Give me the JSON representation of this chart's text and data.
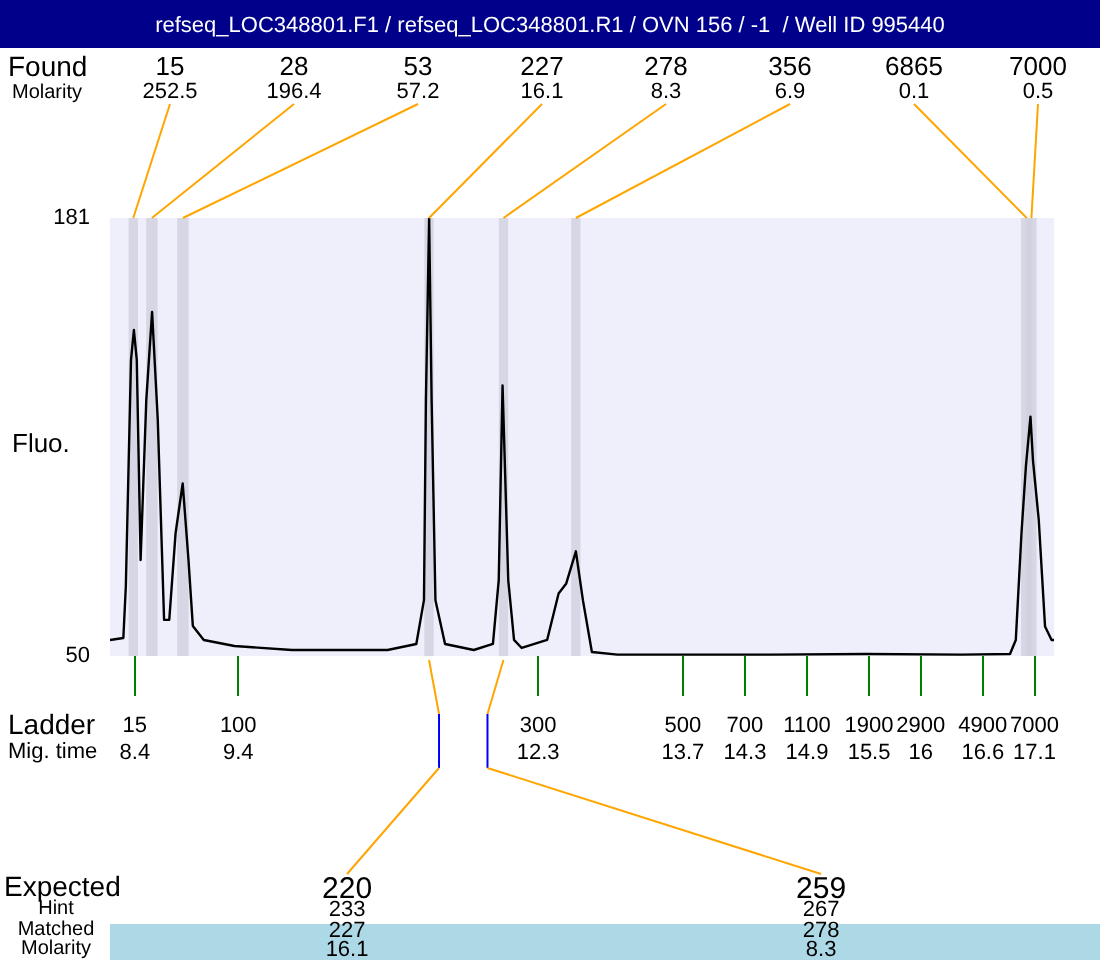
{
  "chart_data": {
    "type": "line",
    "title": "refseq_LOC348801.F1 / refseq_LOC348801.R1 / OVN 156 / -1  / Well ID 995440",
    "ylabel": "Fluo.",
    "xlabel": "Mig. time",
    "x": [
      8.16,
      8.289,
      8.313,
      8.363,
      8.391,
      8.419,
      8.456,
      8.511,
      8.567,
      8.622,
      8.683,
      8.733,
      8.794,
      8.863,
      8.919,
      8.961,
      9.067,
      9.363,
      9.919,
      10.844,
      11.122,
      11.196,
      11.215,
      11.246,
      11.27,
      11.307,
      11.4,
      11.678,
      11.863,
      11.919,
      11.956,
      12.011,
      12.067,
      12.141,
      12.387,
      12.498,
      12.572,
      12.665,
      12.733,
      12.82,
      13.067,
      14.548,
      15.474,
      16.4,
      16.863,
      16.919,
      16.974,
      17.017,
      17.061,
      17.085,
      17.141,
      17.202,
      17.265,
      17.289
    ],
    "series": [
      {
        "color": "#000000",
        "values": [
          54.8,
          55.4,
          70.7,
          138.5,
          147.5,
          138.5,
          78.7,
          126.6,
          152.9,
          120.6,
          60.8,
          60.8,
          86.7,
          101.6,
          78.7,
          59,
          54.8,
          53,
          51.8,
          51.8,
          53.6,
          66.7,
          126.6,
          181,
          126.6,
          66.7,
          53.6,
          51.8,
          53.6,
          72.7,
          130.9,
          72.7,
          54.8,
          52.4,
          54.8,
          68.7,
          71.7,
          81.3,
          66.7,
          51.2,
          50.4,
          50.4,
          50.6,
          50.4,
          50.6,
          54.8,
          86.7,
          106.8,
          121.6,
          108.6,
          90.7,
          58.8,
          54.8,
          54.8
        ]
      }
    ],
    "xlim": [
      8.16,
      17.29
    ],
    "ylim": [
      50,
      181
    ],
    "yticks": [
      50,
      181
    ],
    "xticks": [
      8.4,
      9.4,
      12.3,
      13.7,
      14.3,
      14.9,
      15.5,
      16,
      16.6,
      17.1
    ],
    "bands": [
      {
        "axis": "x",
        "from": 8.34,
        "to": 8.43,
        "label": "15",
        "color": "#d0d0de"
      },
      {
        "axis": "x",
        "from": 8.51,
        "to": 8.62,
        "label": "28",
        "color": "#d0d0de"
      },
      {
        "axis": "x",
        "from": 8.81,
        "to": 8.92,
        "label": "53",
        "color": "#d0d0de"
      },
      {
        "axis": "x",
        "from": 11.2,
        "to": 11.29,
        "label": "227",
        "color": "#d0d0de"
      },
      {
        "axis": "x",
        "from": 11.92,
        "to": 12.01,
        "label": "278",
        "color": "#d0d0de"
      },
      {
        "axis": "x",
        "from": 12.62,
        "to": 12.71,
        "label": "356",
        "color": "#d0d0de"
      },
      {
        "axis": "x",
        "from": 16.97,
        "to": 17.08,
        "label": "6865",
        "color": "#d0d0de"
      },
      {
        "axis": "x",
        "from": 17.02,
        "to": 17.12,
        "label": "7000",
        "color": "#d0d0de"
      }
    ],
    "annotations": [
      "Found",
      "Molarity",
      {
        "text": "252.5",
        "x": 8.385,
        "y": 181
      },
      {
        "text": "196.4",
        "x": 8.565,
        "y": 181
      },
      {
        "text": "57.2",
        "x": 8.865,
        "y": 181
      },
      {
        "text": "16.1",
        "x": 11.245,
        "y": 181
      },
      {
        "text": "8.3",
        "x": 11.965,
        "y": 181
      },
      {
        "text": "6.9",
        "x": 12.665,
        "y": 181
      },
      {
        "text": "0.1",
        "x": 17.025,
        "y": 181
      },
      {
        "text": "0.5",
        "x": 17.07,
        "y": 181
      },
      "Ladder",
      "15",
      "100",
      "300",
      "500",
      "700",
      "1100",
      "1900",
      "2900",
      "4900",
      "7000",
      "Expected",
      "Hint",
      "Matched",
      "Molarity",
      "220",
      "233",
      "227",
      "16.1",
      "259",
      "267",
      "278",
      "8.3"
    ]
  }
}
